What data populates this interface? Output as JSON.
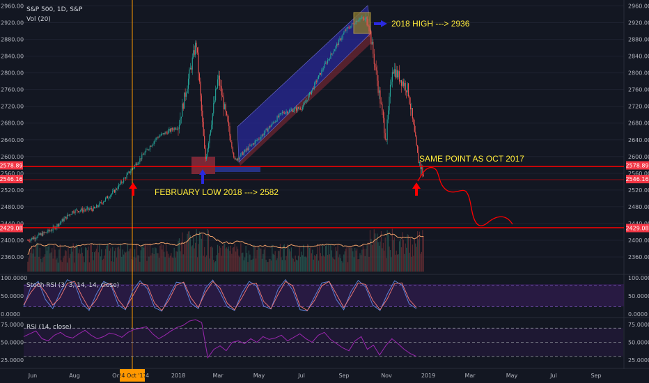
{
  "header": {
    "symbol": "S&P 500, 1D, S&P",
    "volume_label": "Vol (20)"
  },
  "chart_data": [
    {
      "type": "line",
      "title": "S&P 500, 1D, S&P",
      "ylim": [
        2320,
        2960
      ],
      "y_ticks": [
        "2960.00",
        "2920.00",
        "2880.00",
        "2840.00",
        "2800.00",
        "2760.00",
        "2720.00",
        "2680.00",
        "2640.00",
        "2600.00",
        "2560.00",
        "2520.00",
        "2480.00",
        "2440.00",
        "2400.00",
        "2360.00"
      ],
      "x_ticks": [
        "Jun",
        "Aug",
        "Oct",
        "14",
        "2018",
        "Mar",
        "May",
        "Jul",
        "Sep",
        "Nov",
        "2019",
        "Mar",
        "May",
        "Jul",
        "Sep"
      ],
      "x": [
        "2017-05-26",
        "2017-06-30",
        "2017-07-31",
        "2017-08-31",
        "2017-09-30",
        "2017-10-24",
        "2017-11-30",
        "2017-12-31",
        "2018-01-26",
        "2018-02-08",
        "2018-02-27",
        "2018-03-23",
        "2018-04-30",
        "2018-05-31",
        "2018-06-30",
        "2018-07-31",
        "2018-08-31",
        "2018-09-20",
        "2018-10-03",
        "2018-10-29",
        "2018-11-07",
        "2018-11-30",
        "2018-12-14",
        "2018-12-24"
      ],
      "series": [
        {
          "values": [
            2400,
            2425,
            2470,
            2475,
            2519,
            2569,
            2646,
            2673,
            2873,
            2590,
            2790,
            2590,
            2648,
            2705,
            2718,
            2816,
            2901,
            2931,
            2925,
            2641,
            2813,
            2760,
            2599,
            2546
          ]
        }
      ],
      "price_labels": [
        {
          "text": "2578.89",
          "color": "#f23645"
        },
        {
          "text": "2546.16",
          "color": "#f23645"
        },
        {
          "text": "2429.08",
          "color": "#f23645"
        }
      ],
      "cursor_date_label": "24 Oct '17",
      "annotations": [
        {
          "text": "2018 HIGH ---> 2936",
          "color": "#ffeb3b"
        },
        {
          "text": "FEBRUARY LOW 2018 ---> 2582",
          "color": "#ffeb3b"
        },
        {
          "text": "SAME POINT AS OCT 2017",
          "color": "#ffeb3b"
        }
      ],
      "levels": [
        2578.89,
        2546.16,
        2429.08
      ],
      "colors": {
        "up": "#26a69a",
        "down": "#ef5350",
        "levels": "#ff0000",
        "channel_up": "#2a2a9e",
        "channel_down": "#8e2a3a",
        "cursor": "#ff9800"
      }
    },
    {
      "type": "line",
      "title": "Stoch RSI (3, 3, 14, 14, close)",
      "ylim": [
        0,
        100
      ],
      "y_ticks": [
        "100.0000",
        "50.0000",
        "0.0000"
      ],
      "series": [
        {
          "values": [
            20,
            75,
            90,
            40,
            15,
            60,
            95,
            85,
            30,
            10,
            55,
            90,
            80,
            25,
            12,
            65,
            92,
            70,
            18,
            8,
            50,
            88,
            85,
            30,
            15,
            72,
            94,
            60,
            20,
            10,
            58,
            90,
            78,
            22,
            14,
            70,
            95,
            66,
            12,
            9,
            48,
            86,
            90,
            40,
            12,
            62,
            93,
            75,
            25,
            10,
            55,
            92,
            80,
            28,
            15
          ]
        },
        {
          "values": [
            25,
            60,
            85,
            60,
            25,
            45,
            85,
            90,
            50,
            15,
            40,
            80,
            85,
            40,
            15,
            50,
            85,
            80,
            30,
            10,
            40,
            80,
            88,
            45,
            18,
            60,
            90,
            72,
            30,
            12,
            45,
            82,
            85,
            35,
            15,
            55,
            90,
            78,
            22,
            10,
            38,
            78,
            90,
            55,
            18,
            50,
            86,
            82,
            38,
            12,
            42,
            84,
            86,
            40,
            18
          ]
        }
      ],
      "levels": [
        80,
        20
      ]
    },
    {
      "type": "line",
      "title": "RSI (14, close)",
      "ylim": [
        15,
        85
      ],
      "y_ticks": [
        "75.0000",
        "50.0000",
        "25.0000"
      ],
      "series": [
        {
          "values": [
            58,
            62,
            66,
            55,
            52,
            60,
            64,
            58,
            56,
            62,
            67,
            60,
            55,
            58,
            63,
            61,
            57,
            64,
            68,
            70,
            72,
            62,
            55,
            60,
            66,
            71,
            74,
            80,
            82,
            78,
            28,
            40,
            45,
            38,
            50,
            52,
            48,
            55,
            50,
            58,
            54,
            56,
            60,
            52,
            57,
            62,
            55,
            50,
            60,
            64,
            54,
            48,
            42,
            38,
            52,
            58,
            40,
            46,
            32,
            45,
            55,
            48,
            40,
            34,
            30
          ]
        }
      ],
      "levels": [
        70,
        50,
        30
      ]
    },
    {
      "type": "bar",
      "title": "Vol (20)",
      "note": "volume histogram with moving average"
    }
  ]
}
